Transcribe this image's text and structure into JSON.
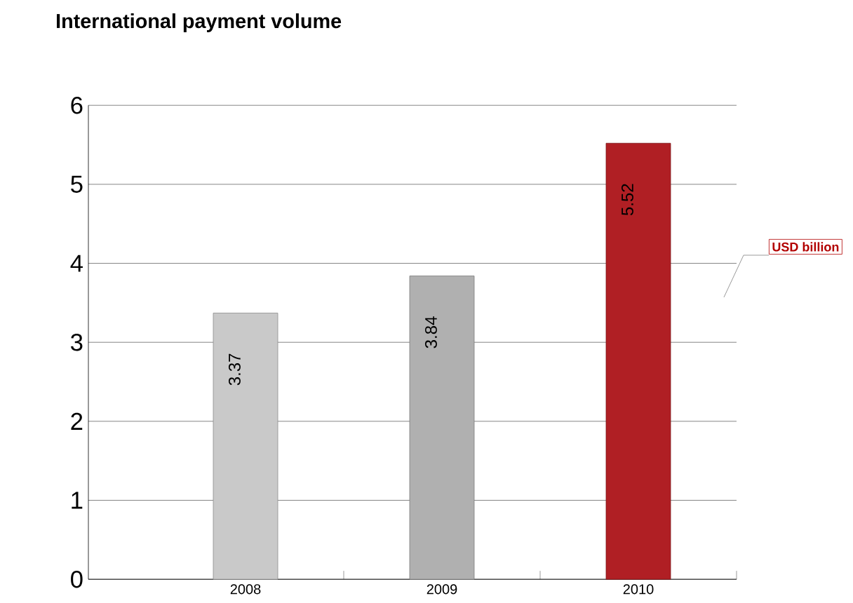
{
  "chart_data": {
    "type": "bar",
    "title": "International payment volume",
    "categories": [
      "2008",
      "2009",
      "2010"
    ],
    "values": [
      3.37,
      3.84,
      5.52
    ],
    "colors": [
      "#c9c9c9",
      "#b0b0b0",
      "#b01f24"
    ],
    "ylim": [
      0,
      6
    ],
    "yticks": [
      0,
      1,
      2,
      3,
      4,
      5,
      6
    ],
    "grid": "y",
    "data_labels": true,
    "annotations": [
      "USD billion"
    ]
  }
}
